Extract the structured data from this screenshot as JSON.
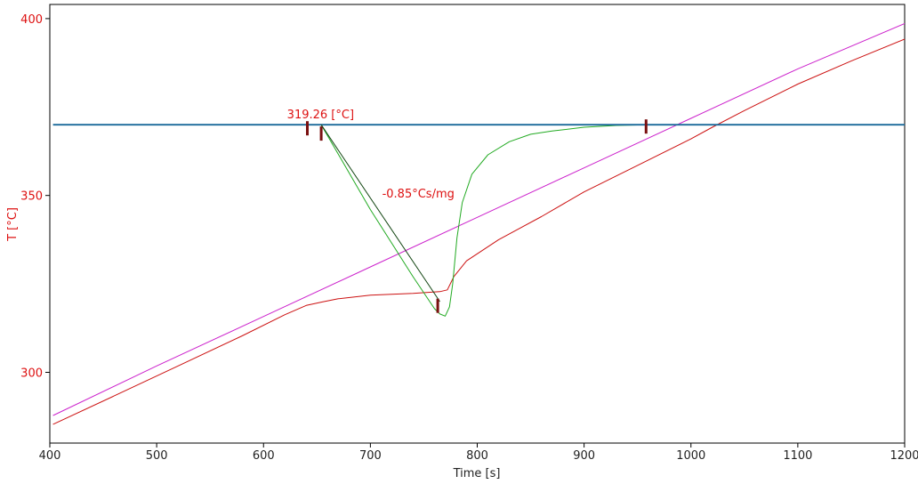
{
  "chart_data": {
    "type": "line",
    "xlabel": "Time [s]",
    "ylabel": "T  [°C]",
    "xlim": [
      400,
      1200
    ],
    "ylim": [
      280,
      404
    ],
    "x_ticks": [
      400,
      500,
      600,
      700,
      800,
      900,
      1000,
      1100,
      1200
    ],
    "y_ticks": [
      300,
      350,
      400
    ],
    "grid": false,
    "colors": {
      "axis_text": "#222222",
      "y_axis_text": "#dd1111",
      "annotation": "#dd1111",
      "marker": "#7a1010"
    },
    "series": [
      {
        "color": "#cc22cc",
        "x": [
          403,
          500,
          600,
          700,
          800,
          900,
          1000,
          1100,
          1200
        ],
        "y": [
          287.8,
          301.8,
          315.8,
          329.8,
          343.8,
          357.8,
          371.8,
          385.8,
          398.6
        ]
      },
      {
        "color": "#cc1111",
        "x": [
          403,
          460,
          520,
          580,
          620,
          640,
          655,
          670,
          700,
          740,
          765,
          772,
          778,
          790,
          820,
          860,
          900,
          950,
          1000,
          1020,
          1050,
          1100,
          1150,
          1200
        ],
        "y": [
          285.3,
          293.3,
          301.8,
          310.3,
          316.3,
          318.9,
          319.9,
          320.8,
          321.8,
          322.3,
          322.8,
          323.3,
          327,
          331.5,
          337.5,
          344,
          351,
          358.5,
          366,
          369.3,
          374,
          381.5,
          388,
          394.2
        ]
      },
      {
        "color": "#22aa22",
        "x": [
          654,
          700,
          740,
          760,
          765,
          770,
          774,
          777,
          781,
          786,
          795,
          810,
          830,
          850,
          870,
          900,
          930,
          960,
          1000,
          1100,
          1200
        ],
        "y": [
          370,
          346,
          327,
          318,
          316.5,
          315.9,
          318.5,
          325,
          338,
          348,
          356,
          361.5,
          365.2,
          367.3,
          368.2,
          369.3,
          369.8,
          370,
          370,
          370,
          370
        ]
      },
      {
        "color": "#1a6a9a",
        "x": [
          403,
          1200
        ],
        "y": [
          370,
          370
        ]
      },
      {
        "color": "#114411",
        "x": [
          654,
          765
        ],
        "y": [
          370,
          320
        ]
      }
    ],
    "markers": [
      {
        "x": 641,
        "y": 369
      },
      {
        "x": 654,
        "y": 367.5
      },
      {
        "x": 763,
        "y": 318.8
      },
      {
        "x": 958,
        "y": 369.5
      }
    ],
    "annotations": [
      {
        "text": "319.26 [°C]",
        "x": 622,
        "y": 371.8
      },
      {
        "text": "-0.85°Cs/mg",
        "x": 711,
        "y": 349.4
      }
    ]
  }
}
